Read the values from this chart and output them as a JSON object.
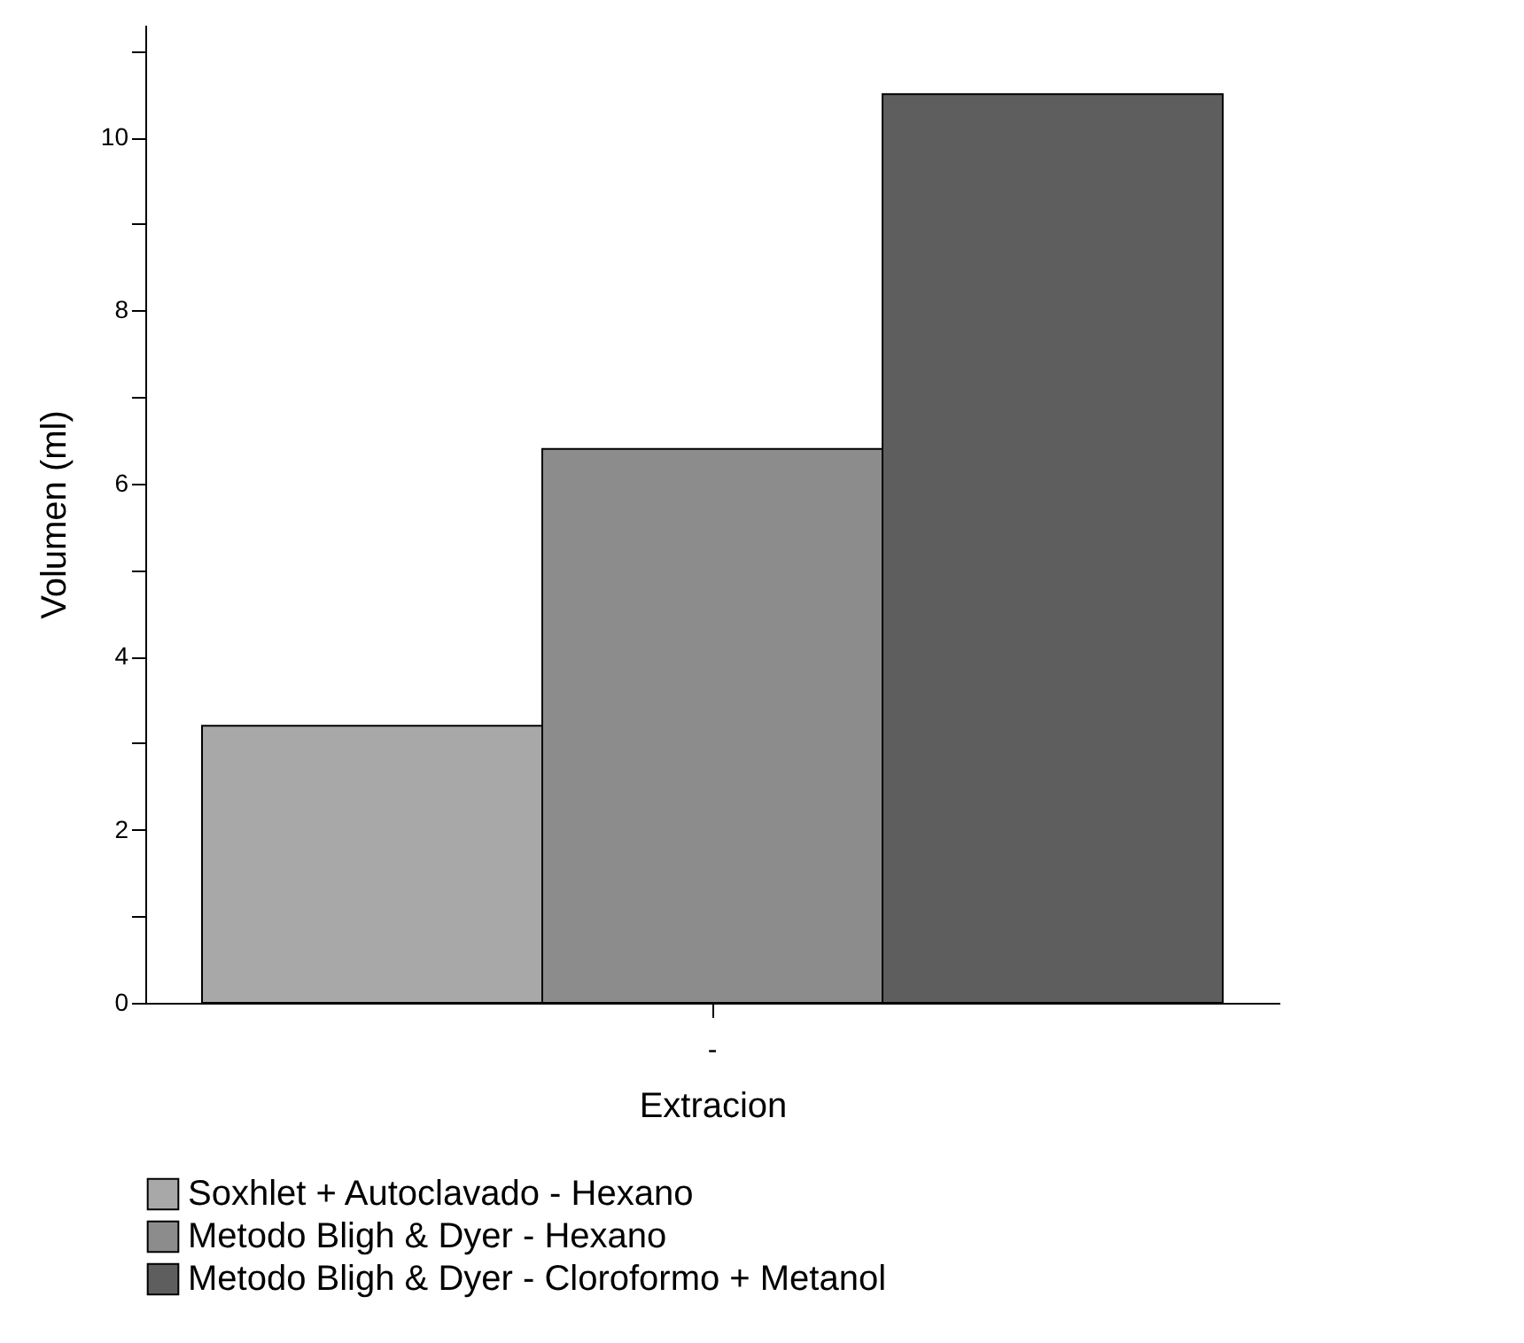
{
  "chart_data": {
    "type": "bar",
    "xlabel": "Extracion",
    "ylabel": "Volumen (ml)",
    "categories": [
      "-"
    ],
    "series": [
      {
        "name": "Soxhlet + Autoclavado - Hexano",
        "color": "#a8a8a8",
        "values": [
          3.2
        ]
      },
      {
        "name": "Metodo Bligh & Dyer - Hexano",
        "color": "#8c8c8c",
        "values": [
          6.4
        ]
      },
      {
        "name": "Metodo Bligh & Dyer - Cloroformo + Metanol",
        "color": "#5e5e5e",
        "values": [
          10.5
        ]
      }
    ],
    "ylim": [
      0,
      11.3
    ],
    "yticks": [
      0,
      {
        "value": 1,
        "label": null
      },
      2,
      {
        "value": 3,
        "label": null
      },
      4,
      {
        "value": 5,
        "label": null
      },
      6,
      {
        "value": 7,
        "label": null
      },
      8,
      {
        "value": 9,
        "label": null
      },
      10,
      {
        "value": 11,
        "label": null
      }
    ],
    "grid": false,
    "legend": "bottom"
  }
}
